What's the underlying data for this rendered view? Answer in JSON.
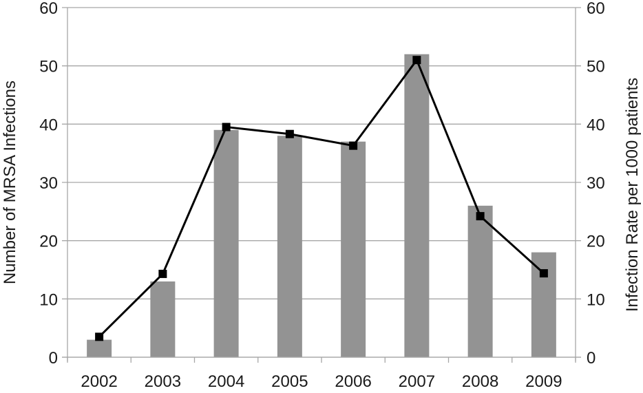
{
  "chart_data": {
    "type": "bar+line",
    "title": "",
    "categories": [
      "2002",
      "2003",
      "2004",
      "2005",
      "2006",
      "2007",
      "2008",
      "2009"
    ],
    "series": [
      {
        "name": "Number of MRSA Infections",
        "type": "bar",
        "axis": "left",
        "color": "#939393",
        "values": [
          3,
          13,
          39,
          38,
          37,
          52,
          26,
          18
        ]
      },
      {
        "name": "Infection Rate per 1000 patients",
        "type": "line",
        "axis": "right",
        "color": "#000000",
        "marker": "square",
        "values": [
          3.5,
          14.3,
          39.5,
          38.3,
          36.3,
          51.0,
          24.2,
          14.4
        ]
      }
    ],
    "xlabel": "",
    "ylabel": "Number of MRSA Infections",
    "y2label": "Infection Rate per 1000 patients",
    "ylim": [
      0,
      60
    ],
    "y2lim": [
      0,
      60
    ],
    "yticks": [
      0,
      10,
      20,
      30,
      40,
      50,
      60
    ],
    "y2ticks": [
      0,
      10,
      20,
      30,
      40,
      50,
      60
    ],
    "grid": true,
    "legend": null
  },
  "colors": {
    "bar": "#939393",
    "line": "#000000",
    "grid": "#a6a6a6",
    "text": "#1a1a1a"
  }
}
